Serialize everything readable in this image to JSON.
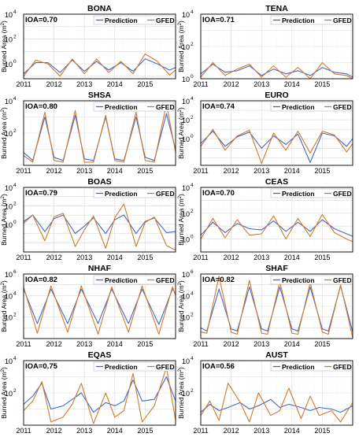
{
  "legend": {
    "prediction": "Prediction",
    "gfed": "GFED"
  },
  "colors": {
    "prediction": "#4169c8",
    "gfed": "#d07a2a",
    "grid": "#d9d9d9",
    "axis": "#000000"
  },
  "ylabel_main": "Burned Area (m",
  "ylabel_exp": "2",
  "ylabel_close": ")",
  "x_ticks": [
    "2011",
    "2012",
    "2013",
    "2014",
    "2015"
  ],
  "chart_data": [
    {
      "type": "line",
      "title": "BONA",
      "ioa": "IOA=0.70",
      "ylabel": "Burned Area (m2)",
      "y_log": true,
      "yticks": [
        {
          "e": 0,
          "b": "10"
        },
        {
          "e": 2,
          "b": "10"
        },
        {
          "e": 4,
          "b": "10"
        }
      ],
      "ylim_exp": [
        -1.2,
        4
      ],
      "x_range": [
        2011,
        2016
      ],
      "series": [
        {
          "name": "Prediction",
          "x": [
            2011.0,
            2011.4,
            2011.8,
            2012.2,
            2012.6,
            2013.0,
            2013.4,
            2013.8,
            2014.2,
            2014.6,
            2015.0,
            2015.4,
            2015.8,
            2016.0
          ],
          "y_exp": [
            -0.8,
            0.1,
            0.1,
            -0.7,
            0.3,
            -0.6,
            0.2,
            -0.5,
            0.1,
            -0.6,
            0.4,
            0.0,
            -0.5,
            -0.3
          ]
        },
        {
          "name": "GFED",
          "x": [
            2011.0,
            2011.4,
            2011.8,
            2012.2,
            2012.6,
            2013.0,
            2013.4,
            2013.8,
            2014.2,
            2014.6,
            2015.0,
            2015.4,
            2015.8,
            2016.0
          ],
          "y_exp": [
            -1.0,
            0.3,
            0.0,
            -1.0,
            0.4,
            -0.8,
            0.4,
            -0.7,
            0.2,
            -0.8,
            0.8,
            0.2,
            -0.9,
            -0.5
          ]
        }
      ]
    },
    {
      "type": "line",
      "title": "TENA",
      "ioa": "IOA=0.71",
      "ylabel": "Burned Area (m2)",
      "y_log": true,
      "yticks": [
        {
          "e": 0,
          "b": "10"
        },
        {
          "e": 2,
          "b": "10"
        },
        {
          "e": 4,
          "b": "10"
        }
      ],
      "ylim_exp": [
        0,
        4
      ],
      "x_range": [
        2011,
        2016
      ],
      "series": [
        {
          "name": "Prediction",
          "x": [
            2011.0,
            2011.4,
            2011.8,
            2012.2,
            2012.6,
            2013.0,
            2013.4,
            2013.8,
            2014.2,
            2014.6,
            2015.0,
            2015.4,
            2015.8,
            2016.0
          ],
          "y_exp": [
            0.3,
            0.9,
            0.4,
            0.5,
            0.8,
            0.2,
            0.6,
            0.3,
            0.5,
            0.2,
            0.7,
            0.4,
            0.3,
            0.1
          ]
        },
        {
          "name": "GFED",
          "x": [
            2011.0,
            2011.4,
            2011.8,
            2012.2,
            2012.6,
            2013.0,
            2013.4,
            2013.8,
            2014.2,
            2014.6,
            2015.0,
            2015.4,
            2015.8,
            2016.0
          ],
          "y_exp": [
            0.1,
            1.0,
            0.2,
            0.6,
            0.9,
            0.1,
            0.8,
            0.1,
            0.7,
            0.0,
            1.0,
            0.3,
            0.2,
            0.0
          ]
        }
      ]
    },
    {
      "type": "line",
      "title": "SHSA",
      "ioa": "IOA=0.80",
      "ylabel": "Burned Area (m2)",
      "y_log": true,
      "yticks": [
        {
          "e": 2,
          "b": "10"
        },
        {
          "e": 4,
          "b": "10"
        }
      ],
      "ylim_exp": [
        0,
        4
      ],
      "x_range": [
        2011,
        2016
      ],
      "series": [
        {
          "name": "Prediction",
          "x": [
            2011.0,
            2011.3,
            2011.7,
            2012.0,
            2012.3,
            2012.7,
            2013.0,
            2013.3,
            2013.7,
            2014.0,
            2014.3,
            2014.7,
            2015.0,
            2015.3,
            2015.7,
            2016.0
          ],
          "y_exp": [
            0.8,
            0.3,
            3.0,
            0.5,
            0.3,
            3.1,
            0.4,
            0.3,
            3.0,
            0.4,
            0.3,
            3.0,
            0.5,
            0.3,
            3.2,
            1.0
          ]
        },
        {
          "name": "GFED",
          "x": [
            2011.0,
            2011.3,
            2011.7,
            2012.0,
            2012.3,
            2012.7,
            2013.0,
            2013.3,
            2013.7,
            2014.0,
            2014.3,
            2014.7,
            2015.0,
            2015.3,
            2015.7,
            2016.0
          ],
          "y_exp": [
            0.6,
            0.2,
            3.3,
            0.3,
            0.2,
            3.4,
            0.2,
            0.2,
            3.1,
            0.3,
            0.2,
            3.3,
            0.3,
            0.2,
            3.8,
            0.8
          ]
        }
      ]
    },
    {
      "type": "line",
      "title": "EURO",
      "ioa": "IOA=0.74",
      "ylabel": "Burned Area (m2)",
      "y_log": true,
      "yticks": [
        {
          "e": 0,
          "b": "10"
        },
        {
          "e": 2,
          "b": "10"
        },
        {
          "e": 4,
          "b": "10"
        }
      ],
      "ylim_exp": [
        -2.8,
        4
      ],
      "x_range": [
        2011,
        2016
      ],
      "series": [
        {
          "name": "Prediction",
          "x": [
            2011.0,
            2011.4,
            2011.8,
            2012.2,
            2012.6,
            2013.0,
            2013.4,
            2013.8,
            2014.2,
            2014.6,
            2015.0,
            2015.4,
            2015.8,
            2016.0
          ],
          "y_exp": [
            -0.5,
            0.8,
            -0.8,
            0.2,
            0.7,
            -1.0,
            0.3,
            -0.6,
            0.5,
            -2.5,
            0.6,
            0.3,
            -0.8,
            0.0
          ]
        },
        {
          "name": "GFED",
          "x": [
            2011.0,
            2011.4,
            2011.8,
            2012.2,
            2012.6,
            2013.0,
            2013.4,
            2013.8,
            2014.2,
            2014.6,
            2015.0,
            2015.4,
            2015.8,
            2016.0
          ],
          "y_exp": [
            -0.8,
            1.0,
            -1.2,
            0.3,
            0.9,
            -2.6,
            0.6,
            -1.2,
            0.8,
            -1.5,
            0.8,
            0.4,
            -1.4,
            -0.5
          ]
        }
      ]
    },
    {
      "type": "line",
      "title": "BOAS",
      "ioa": "IOA=0.79",
      "ylabel": "Burned Area (m2)",
      "y_log": true,
      "yticks": [
        {
          "e": 0,
          "b": "10"
        },
        {
          "e": 2,
          "b": "10"
        },
        {
          "e": 4,
          "b": "10"
        }
      ],
      "ylim_exp": [
        -3,
        4
      ],
      "x_range": [
        2011,
        2016
      ],
      "series": [
        {
          "name": "Prediction",
          "x": [
            2011.0,
            2011.3,
            2011.7,
            2012.0,
            2012.3,
            2012.7,
            2013.0,
            2013.3,
            2013.7,
            2014.0,
            2014.3,
            2014.7,
            2015.0,
            2015.3,
            2015.7,
            2016.0
          ],
          "y_exp": [
            0.3,
            1.0,
            -0.8,
            0.6,
            1.0,
            -1.0,
            -0.2,
            0.7,
            -1.0,
            0.5,
            1.0,
            -1.0,
            0.3,
            0.7,
            -0.9,
            -0.8
          ]
        },
        {
          "name": "GFED",
          "x": [
            2011.0,
            2011.3,
            2011.7,
            2012.0,
            2012.3,
            2012.7,
            2013.0,
            2013.3,
            2013.7,
            2014.0,
            2014.3,
            2014.7,
            2015.0,
            2015.3,
            2015.7,
            2016.0
          ],
          "y_exp": [
            0.1,
            1.0,
            -1.8,
            0.8,
            1.2,
            -2.4,
            -0.6,
            0.9,
            -2.6,
            0.7,
            2.2,
            -2.4,
            0.2,
            0.8,
            -2.3,
            -2.8
          ]
        }
      ]
    },
    {
      "type": "line",
      "title": "CEAS",
      "ioa": "IOA=0.70",
      "ylabel": "Burned Area (m2)",
      "y_log": true,
      "yticks": [
        {
          "e": 0,
          "b": "10"
        },
        {
          "e": 2,
          "b": "10"
        },
        {
          "e": 4,
          "b": "10"
        }
      ],
      "ylim_exp": [
        -1,
        4
      ],
      "x_range": [
        2011,
        2016
      ],
      "series": [
        {
          "name": "Prediction",
          "x": [
            2011.0,
            2011.4,
            2011.8,
            2012.2,
            2012.6,
            2013.0,
            2013.4,
            2013.8,
            2014.2,
            2014.6,
            2015.0,
            2015.4,
            2015.8,
            2016.0
          ],
          "y_exp": [
            0.3,
            1.3,
            0.5,
            1.2,
            0.8,
            0.7,
            1.4,
            0.6,
            1.3,
            0.6,
            1.5,
            0.8,
            0.4,
            0.2
          ]
        },
        {
          "name": "GFED",
          "x": [
            2011.0,
            2011.4,
            2011.8,
            2012.2,
            2012.6,
            2013.0,
            2013.4,
            2013.8,
            2014.2,
            2014.6,
            2015.0,
            2015.4,
            2015.8,
            2016.0
          ],
          "y_exp": [
            0.0,
            1.6,
            0.1,
            1.5,
            0.3,
            0.4,
            1.8,
            0.0,
            1.6,
            0.2,
            1.9,
            0.5,
            0.0,
            -0.2
          ]
        }
      ]
    },
    {
      "type": "line",
      "title": "NHAF",
      "ioa": "IOA=0.82",
      "ylabel": "Burned Area (m2)",
      "y_log": true,
      "yticks": [
        {
          "e": 2,
          "b": "10"
        },
        {
          "e": 4,
          "b": "10"
        },
        {
          "e": 6,
          "b": "10"
        }
      ],
      "ylim_exp": [
        0,
        6
      ],
      "x_range": [
        2011,
        2016
      ],
      "series": [
        {
          "name": "Prediction",
          "x": [
            2011.0,
            2011.45,
            2011.9,
            2012.45,
            2012.9,
            2013.45,
            2013.9,
            2014.45,
            2014.9,
            2015.45,
            2015.9,
            2016.0
          ],
          "y_exp": [
            4.6,
            1.4,
            4.6,
            1.4,
            4.6,
            1.4,
            4.6,
            1.4,
            4.6,
            1.3,
            4.6,
            4.2
          ]
        },
        {
          "name": "GFED",
          "x": [
            2011.0,
            2011.45,
            2011.9,
            2012.45,
            2012.9,
            2013.45,
            2013.9,
            2014.45,
            2014.9,
            2015.45,
            2015.9,
            2016.0
          ],
          "y_exp": [
            4.8,
            0.5,
            4.9,
            0.6,
            4.9,
            0.4,
            4.8,
            0.6,
            4.9,
            0.4,
            4.8,
            4.0
          ]
        }
      ]
    },
    {
      "type": "line",
      "title": "SHAF",
      "ioa": "IOA=0.82",
      "ylabel": "Burned Area (m2)",
      "y_log": true,
      "yticks": [
        {
          "e": 2,
          "b": "10"
        },
        {
          "e": 4,
          "b": "10"
        },
        {
          "e": 6,
          "b": "10"
        }
      ],
      "ylim_exp": [
        0,
        6
      ],
      "x_range": [
        2011,
        2016
      ],
      "series": [
        {
          "name": "Prediction",
          "x": [
            2011.0,
            2011.2,
            2011.6,
            2012.0,
            2012.2,
            2012.6,
            2013.0,
            2013.2,
            2013.6,
            2014.0,
            2014.2,
            2014.6,
            2015.0,
            2015.2,
            2015.6,
            2016.0
          ],
          "y_exp": [
            1.0,
            0.7,
            4.6,
            0.9,
            0.7,
            4.8,
            0.9,
            0.7,
            4.8,
            0.9,
            0.7,
            4.8,
            0.9,
            0.7,
            4.9,
            0.6
          ]
        },
        {
          "name": "GFED",
          "x": [
            2011.0,
            2011.2,
            2011.6,
            2012.0,
            2012.2,
            2012.6,
            2013.0,
            2013.2,
            2013.6,
            2014.0,
            2014.2,
            2014.6,
            2015.0,
            2015.2,
            2015.6,
            2016.0
          ],
          "y_exp": [
            0.6,
            0.5,
            5.8,
            0.6,
            0.4,
            5.4,
            0.5,
            0.4,
            5.3,
            0.5,
            0.4,
            5.2,
            0.6,
            0.4,
            5.0,
            0.1
          ]
        }
      ]
    },
    {
      "type": "line",
      "title": "EQAS",
      "ioa": "IOA=0.75",
      "ylabel": "Burned Area (m2)",
      "y_log": true,
      "yticks": [
        {
          "e": 2,
          "b": "10"
        },
        {
          "e": 4,
          "b": "10"
        }
      ],
      "ylim_exp": [
        0,
        4
      ],
      "x_range": [
        2011,
        2016
      ],
      "series": [
        {
          "name": "Prediction",
          "x": [
            2011.0,
            2011.3,
            2011.6,
            2011.9,
            2012.3,
            2012.6,
            2012.9,
            2013.3,
            2013.7,
            2014.0,
            2014.3,
            2014.6,
            2014.9,
            2015.3,
            2015.7,
            2016.0
          ],
          "y_exp": [
            1.3,
            1.8,
            2.6,
            1.0,
            1.2,
            1.6,
            2.0,
            0.8,
            1.4,
            1.2,
            1.5,
            2.8,
            1.5,
            1.6,
            3.0,
            1.5
          ]
        },
        {
          "name": "GFED",
          "x": [
            2011.0,
            2011.3,
            2011.6,
            2011.9,
            2012.3,
            2012.6,
            2012.9,
            2013.3,
            2013.7,
            2014.0,
            2014.3,
            2014.6,
            2014.9,
            2015.3,
            2015.7,
            2016.0
          ],
          "y_exp": [
            0.9,
            1.5,
            2.7,
            0.2,
            0.5,
            1.3,
            2.6,
            0.1,
            2.0,
            0.5,
            0.9,
            3.2,
            0.2,
            1.2,
            3.6,
            0.3
          ]
        }
      ]
    },
    {
      "type": "line",
      "title": "AUST",
      "ioa": "IOA=0.56",
      "ylabel": "Burned Area (m2)",
      "y_log": true,
      "yticks": [
        {
          "e": 2,
          "b": "10"
        },
        {
          "e": 4,
          "b": "10"
        }
      ],
      "ylim_exp": [
        0,
        4
      ],
      "x_range": [
        2011,
        2016
      ],
      "series": [
        {
          "name": "Prediction",
          "x": [
            2011.0,
            2011.3,
            2011.6,
            2011.9,
            2012.3,
            2012.6,
            2012.9,
            2013.3,
            2013.6,
            2013.9,
            2014.3,
            2014.6,
            2014.9,
            2015.3,
            2015.6,
            2016.0
          ],
          "y_exp": [
            0.8,
            1.3,
            0.9,
            1.1,
            1.4,
            1.0,
            1.2,
            1.6,
            1.1,
            1.3,
            1.1,
            0.9,
            1.1,
            1.0,
            0.8,
            1.2
          ]
        },
        {
          "name": "GFED",
          "x": [
            2011.0,
            2011.3,
            2011.6,
            2011.9,
            2012.3,
            2012.6,
            2012.9,
            2013.3,
            2013.6,
            2013.9,
            2014.3,
            2014.6,
            2014.9,
            2015.3,
            2015.6,
            2016.0
          ],
          "y_exp": [
            0.6,
            1.5,
            0.3,
            2.6,
            1.4,
            0.2,
            2.0,
            0.6,
            0.9,
            2.3,
            0.4,
            1.8,
            0.6,
            0.9,
            0.2,
            1.4
          ]
        }
      ]
    }
  ]
}
